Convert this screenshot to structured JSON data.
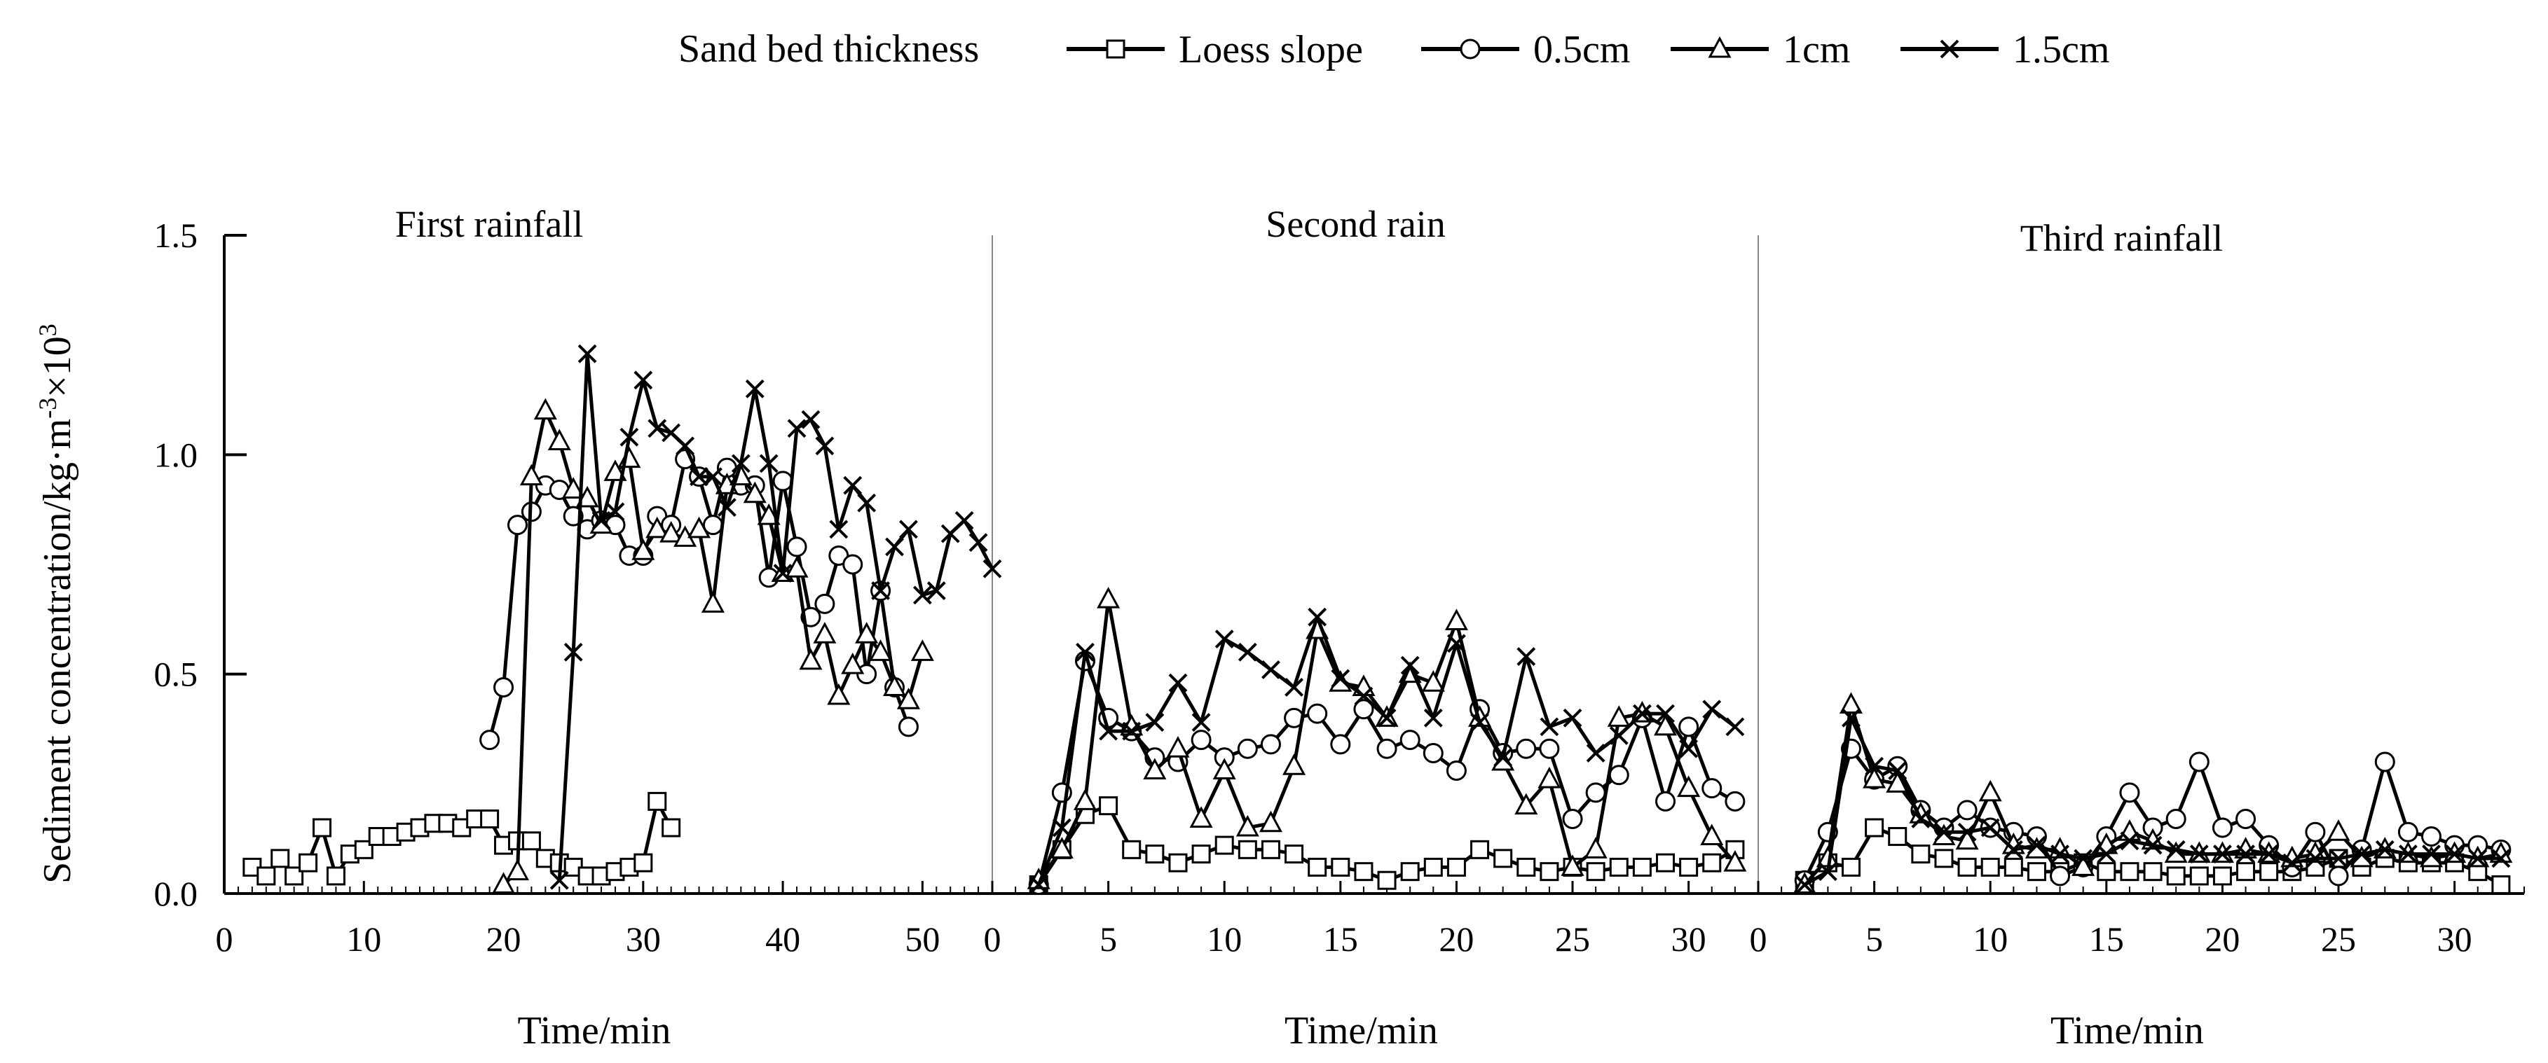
{
  "chart_data": {
    "type": "line",
    "ylabel": "Sediment concentration/kg·m",
    "ylabel_sup1": "-3",
    "ylabel_mid": "×10",
    "ylabel_sup2": "3",
    "ylim": [
      0,
      1.5
    ],
    "yticks": [
      "0.0",
      "0.5",
      "1.0",
      "1.5"
    ],
    "yticks_v": [
      0,
      0.5,
      1.0,
      1.5
    ],
    "legend": {
      "title": "Sand bed thickness",
      "entries": [
        "Loess slope",
        "0.5cm",
        "1cm",
        "1.5cm"
      ]
    },
    "panels": [
      {
        "title": "First rainfall",
        "xlabel": "Time/min",
        "xlim": [
          0,
          55
        ],
        "xticks": [
          0,
          10,
          20,
          30,
          40,
          50
        ],
        "series": [
          {
            "name": "Loess slope",
            "x": [
              2,
              3,
              4,
              5,
              6,
              7,
              8,
              9,
              10,
              11,
              12,
              13,
              14,
              15,
              16,
              17,
              18,
              19,
              20,
              21,
              22,
              23,
              24,
              25,
              26,
              27,
              28,
              29,
              30,
              31,
              32
            ],
            "y": [
              0.06,
              0.04,
              0.08,
              0.04,
              0.07,
              0.15,
              0.04,
              0.09,
              0.1,
              0.13,
              0.13,
              0.14,
              0.15,
              0.16,
              0.16,
              0.15,
              0.17,
              0.17,
              0.11,
              0.12,
              0.12,
              0.08,
              0.07,
              0.06,
              0.04,
              0.04,
              0.05,
              0.06,
              0.07,
              0.21,
              0.15
            ]
          },
          {
            "name": "0.5cm",
            "x": [
              19,
              20,
              21,
              22,
              23,
              24,
              25,
              26,
              27,
              28,
              29,
              30,
              31,
              32,
              33,
              34,
              35,
              36,
              37,
              38,
              39,
              40,
              41,
              42,
              43,
              44,
              45,
              46,
              47,
              48,
              49
            ],
            "y": [
              0.35,
              0.47,
              0.84,
              0.87,
              0.93,
              0.92,
              0.86,
              0.83,
              0.85,
              0.84,
              0.77,
              0.77,
              0.86,
              0.84,
              0.99,
              0.95,
              0.84,
              0.97,
              0.93,
              0.93,
              0.72,
              0.94,
              0.79,
              0.63,
              0.66,
              0.77,
              0.75,
              0.5,
              0.69,
              0.47,
              0.38
            ]
          },
          {
            "name": "1cm",
            "x": [
              20,
              21,
              22,
              23,
              24,
              25,
              26,
              27,
              28,
              29,
              30,
              31,
              32,
              33,
              34,
              35,
              36,
              37,
              38,
              39,
              40,
              41,
              42,
              43,
              44,
              45,
              46,
              47,
              48,
              49,
              50
            ],
            "y": [
              0.02,
              0.05,
              0.95,
              1.1,
              1.03,
              0.92,
              0.9,
              0.84,
              0.96,
              0.99,
              0.78,
              0.83,
              0.82,
              0.81,
              0.83,
              0.66,
              0.93,
              0.95,
              0.91,
              0.86,
              0.73,
              0.74,
              0.53,
              0.59,
              0.45,
              0.52,
              0.59,
              0.55,
              0.47,
              0.44,
              0.55
            ]
          },
          {
            "name": "1.5cm",
            "x": [
              24,
              25,
              26,
              27,
              28,
              29,
              30,
              31,
              32,
              33,
              34,
              35,
              36,
              37,
              38,
              39,
              40,
              41,
              42,
              43,
              44,
              45,
              46,
              47,
              48,
              49,
              50,
              51,
              52,
              53,
              54,
              55
            ],
            "y": [
              0.03,
              0.55,
              1.23,
              0.85,
              0.87,
              1.04,
              1.17,
              1.06,
              1.05,
              1.02,
              0.95,
              0.95,
              0.88,
              0.98,
              1.15,
              0.98,
              0.73,
              1.06,
              1.08,
              1.02,
              0.83,
              0.93,
              0.89,
              0.69,
              0.79,
              0.83,
              0.68,
              0.69,
              0.82,
              0.85,
              0.8,
              0.74
            ]
          }
        ]
      },
      {
        "title": "Second rain",
        "xlabel": "Time/min",
        "xlim": [
          0,
          33
        ],
        "xticks": [
          0,
          5,
          10,
          15,
          20,
          25,
          30
        ],
        "series": [
          {
            "name": "Loess slope",
            "x": [
              2,
              3,
              4,
              5,
              6,
              7,
              8,
              9,
              10,
              11,
              12,
              13,
              14,
              15,
              16,
              17,
              18,
              19,
              20,
              21,
              22,
              23,
              24,
              25,
              26,
              27,
              28,
              29,
              30,
              31,
              32
            ],
            "y": [
              0.02,
              0.1,
              0.18,
              0.2,
              0.1,
              0.09,
              0.07,
              0.09,
              0.11,
              0.1,
              0.1,
              0.09,
              0.06,
              0.06,
              0.05,
              0.03,
              0.05,
              0.06,
              0.06,
              0.1,
              0.08,
              0.06,
              0.05,
              0.06,
              0.05,
              0.06,
              0.06,
              0.07,
              0.06,
              0.07,
              0.1
            ]
          },
          {
            "name": "0.5cm",
            "x": [
              2,
              3,
              4,
              5,
              6,
              7,
              8,
              9,
              10,
              11,
              12,
              13,
              14,
              15,
              16,
              17,
              18,
              19,
              20,
              21,
              22,
              23,
              24,
              25,
              26,
              27,
              28,
              29,
              30,
              31,
              32
            ],
            "y": [
              0.02,
              0.23,
              0.53,
              0.4,
              0.37,
              0.31,
              0.3,
              0.35,
              0.31,
              0.33,
              0.34,
              0.4,
              0.41,
              0.34,
              0.42,
              0.33,
              0.35,
              0.32,
              0.28,
              0.42,
              0.32,
              0.33,
              0.33,
              0.17,
              0.23,
              0.27,
              0.4,
              0.21,
              0.38,
              0.24,
              0.21
            ]
          },
          {
            "name": "1cm",
            "x": [
              2,
              3,
              4,
              5,
              6,
              7,
              8,
              9,
              10,
              11,
              12,
              13,
              14,
              15,
              16,
              17,
              18,
              19,
              20,
              21,
              22,
              23,
              24,
              25,
              26,
              27,
              28,
              29,
              30,
              31,
              32
            ],
            "y": [
              0.03,
              0.1,
              0.21,
              0.67,
              0.38,
              0.28,
              0.33,
              0.17,
              0.28,
              0.15,
              0.16,
              0.29,
              0.6,
              0.48,
              0.47,
              0.4,
              0.5,
              0.48,
              0.62,
              0.4,
              0.3,
              0.2,
              0.26,
              0.06,
              0.1,
              0.4,
              0.41,
              0.38,
              0.24,
              0.13,
              0.07
            ]
          },
          {
            "name": "1.5cm",
            "x": [
              2,
              3,
              4,
              5,
              6,
              7,
              8,
              9,
              10,
              11,
              12,
              13,
              14,
              15,
              16,
              17,
              18,
              19,
              20,
              21,
              22,
              23,
              24,
              25,
              26,
              27,
              28,
              29,
              30,
              31,
              32
            ],
            "y": [
              0.02,
              0.15,
              0.55,
              0.37,
              0.37,
              0.39,
              0.48,
              0.39,
              0.58,
              0.55,
              0.51,
              0.47,
              0.63,
              0.49,
              0.45,
              0.4,
              0.52,
              0.4,
              0.57,
              0.39,
              0.31,
              0.54,
              0.38,
              0.4,
              0.32,
              0.36,
              0.41,
              0.41,
              0.33,
              0.42,
              0.38
            ]
          }
        ]
      },
      {
        "title": "Third rainfall",
        "xlabel": "Time/min",
        "xlim": [
          0,
          33
        ],
        "xticks": [
          0,
          5,
          10,
          15,
          20,
          25,
          30
        ],
        "series": [
          {
            "name": "Loess slope",
            "x": [
              2,
              3,
              4,
              5,
              6,
              7,
              8,
              9,
              10,
              11,
              12,
              13,
              14,
              15,
              16,
              17,
              18,
              19,
              20,
              21,
              22,
              23,
              24,
              25,
              26,
              27,
              28,
              29,
              30,
              31,
              32
            ],
            "y": [
              0.03,
              0.07,
              0.06,
              0.15,
              0.13,
              0.09,
              0.08,
              0.06,
              0.06,
              0.06,
              0.05,
              0.05,
              0.07,
              0.05,
              0.05,
              0.05,
              0.04,
              0.04,
              0.04,
              0.05,
              0.05,
              0.05,
              0.06,
              0.08,
              0.06,
              0.08,
              0.07,
              0.07,
              0.07,
              0.05,
              0.02
            ]
          },
          {
            "name": "0.5cm",
            "x": [
              2,
              3,
              4,
              5,
              6,
              7,
              8,
              9,
              10,
              11,
              12,
              13,
              14,
              15,
              16,
              17,
              18,
              19,
              20,
              21,
              22,
              23,
              24,
              25,
              26,
              27,
              28,
              29,
              30,
              31,
              32
            ],
            "y": [
              0.03,
              0.14,
              0.33,
              0.26,
              0.29,
              0.19,
              0.15,
              0.19,
              0.15,
              0.14,
              0.13,
              0.04,
              0.06,
              0.13,
              0.23,
              0.15,
              0.17,
              0.3,
              0.15,
              0.17,
              0.11,
              0.06,
              0.14,
              0.04,
              0.1,
              0.3,
              0.14,
              0.13,
              0.11,
              0.11,
              0.1
            ]
          },
          {
            "name": "1cm",
            "x": [
              2,
              3,
              4,
              5,
              6,
              7,
              8,
              9,
              10,
              11,
              12,
              13,
              14,
              15,
              16,
              17,
              18,
              19,
              20,
              21,
              22,
              23,
              24,
              25,
              26,
              27,
              28,
              29,
              30,
              31,
              32
            ],
            "y": [
              0.02,
              0.08,
              0.43,
              0.26,
              0.25,
              0.18,
              0.13,
              0.12,
              0.23,
              0.11,
              0.1,
              0.1,
              0.06,
              0.11,
              0.14,
              0.12,
              0.09,
              0.09,
              0.09,
              0.1,
              0.09,
              0.08,
              0.09,
              0.14,
              0.08,
              0.1,
              0.09,
              0.08,
              0.09,
              0.08,
              0.09
            ]
          },
          {
            "name": "1.5cm",
            "x": [
              2,
              3,
              4,
              5,
              6,
              7,
              8,
              9,
              10,
              11,
              12,
              13,
              14,
              15,
              16,
              17,
              18,
              19,
              20,
              21,
              22,
              23,
              24,
              25,
              26,
              27,
              28,
              29,
              30,
              31,
              32
            ],
            "y": [
              0.02,
              0.05,
              0.4,
              0.29,
              0.28,
              0.17,
              0.14,
              0.14,
              0.15,
              0.1,
              0.11,
              0.09,
              0.08,
              0.09,
              0.12,
              0.11,
              0.1,
              0.09,
              0.09,
              0.09,
              0.09,
              0.07,
              0.08,
              0.08,
              0.09,
              0.1,
              0.09,
              0.09,
              0.09,
              0.08,
              0.08
            ]
          }
        ]
      }
    ]
  }
}
